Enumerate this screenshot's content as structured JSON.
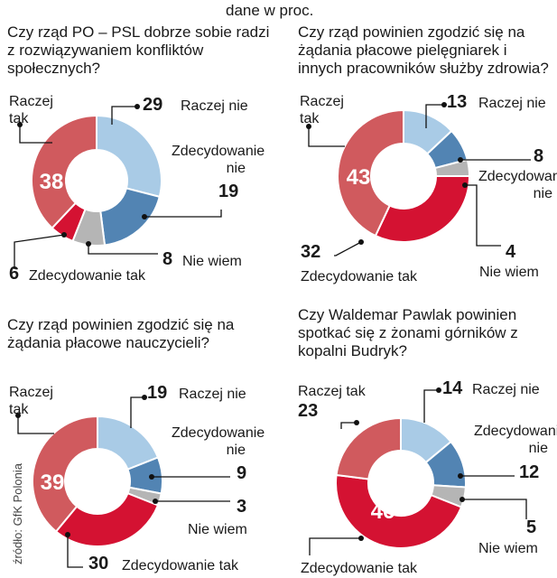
{
  "header": {
    "subtitle": "dane w proc."
  },
  "source": "źródło: GfK Polonia",
  "colors": {
    "raczej_tak": "#d05a5e",
    "raczej_nie": "#a9cbe6",
    "zdecydowanie_nie": "#5284b3",
    "nie_wiem": "#b5b5b5",
    "zdecydowanie_tak": "#d41232",
    "leader": "#111111"
  },
  "chart_data": [
    {
      "type": "pie",
      "title": "Czy rząd PO – PSL dobrze sobie radzi z rozwiązywaniem konfliktów społecznych?",
      "categories": [
        "Raczej nie",
        "Zdecydowanie nie",
        "Nie wiem",
        "Zdecydowanie tak",
        "Raczej tak"
      ],
      "values": [
        29,
        19,
        8,
        6,
        38
      ],
      "labels": {
        "raczej_tak": "Raczej tak",
        "raczej_nie": "Raczej nie",
        "zdecydowanie_nie": "Zdecydowanie nie",
        "nie_wiem": "Nie wiem",
        "zdecydowanie_tak": "Zdecydowanie tak"
      },
      "value_text": {
        "raczej_tak": "38",
        "raczej_nie": "29",
        "zdecydowanie_nie": "19",
        "nie_wiem": "8",
        "zdecydowanie_tak": "6"
      }
    },
    {
      "type": "pie",
      "title": "Czy rząd powinien zgodzić się na żądania płacowe pielęgniarek i innych pracowników służby zdrowia?",
      "categories": [
        "Raczej nie",
        "Zdecydowanie nie",
        "Nie wiem",
        "Zdecydowanie tak",
        "Raczej tak"
      ],
      "values": [
        13,
        8,
        4,
        32,
        43
      ],
      "labels": {
        "raczej_tak": "Raczej tak",
        "raczej_nie": "Raczej nie",
        "zdecydowanie_nie": "Zdecydowanie nie",
        "nie_wiem": "Nie wiem",
        "zdecydowanie_tak": "Zdecydowanie tak"
      },
      "value_text": {
        "raczej_tak": "43",
        "raczej_nie": "13",
        "zdecydowanie_nie": "8",
        "nie_wiem": "4",
        "zdecydowanie_tak": "32"
      }
    },
    {
      "type": "pie",
      "title": "Czy rząd powinien zgodzić się na żądania płacowe nauczycieli?",
      "categories": [
        "Raczej nie",
        "Zdecydowanie nie",
        "Nie wiem",
        "Zdecydowanie tak",
        "Raczej tak"
      ],
      "values": [
        19,
        9,
        3,
        30,
        39
      ],
      "labels": {
        "raczej_tak": "Raczej tak",
        "raczej_nie": "Raczej nie",
        "zdecydowanie_nie": "Zdecydowanie nie",
        "nie_wiem": "Nie wiem",
        "zdecydowanie_tak": "Zdecydowanie tak"
      },
      "value_text": {
        "raczej_tak": "39",
        "raczej_nie": "19",
        "zdecydowanie_nie": "9",
        "nie_wiem": "3",
        "zdecydowanie_tak": "30"
      }
    },
    {
      "type": "pie",
      "title": "Czy Waldemar Pawlak powinien spotkać się z żonami górników z kopalni Budryk?",
      "categories": [
        "Raczej nie",
        "Zdecydowanie nie",
        "Nie wiem",
        "Zdecydowanie tak",
        "Raczej tak"
      ],
      "values": [
        14,
        12,
        5,
        46,
        23
      ],
      "labels": {
        "raczej_tak": "Raczej tak",
        "raczej_nie": "Raczej nie",
        "zdecydowanie_nie": "Zdecydowanie nie",
        "nie_wiem": "Nie wiem",
        "zdecydowanie_tak": "Zdecydowanie tak"
      },
      "value_text": {
        "raczej_tak": "23",
        "raczej_nie": "14",
        "zdecydowanie_nie": "12",
        "nie_wiem": "5",
        "zdecydowanie_tak": "46"
      }
    }
  ]
}
